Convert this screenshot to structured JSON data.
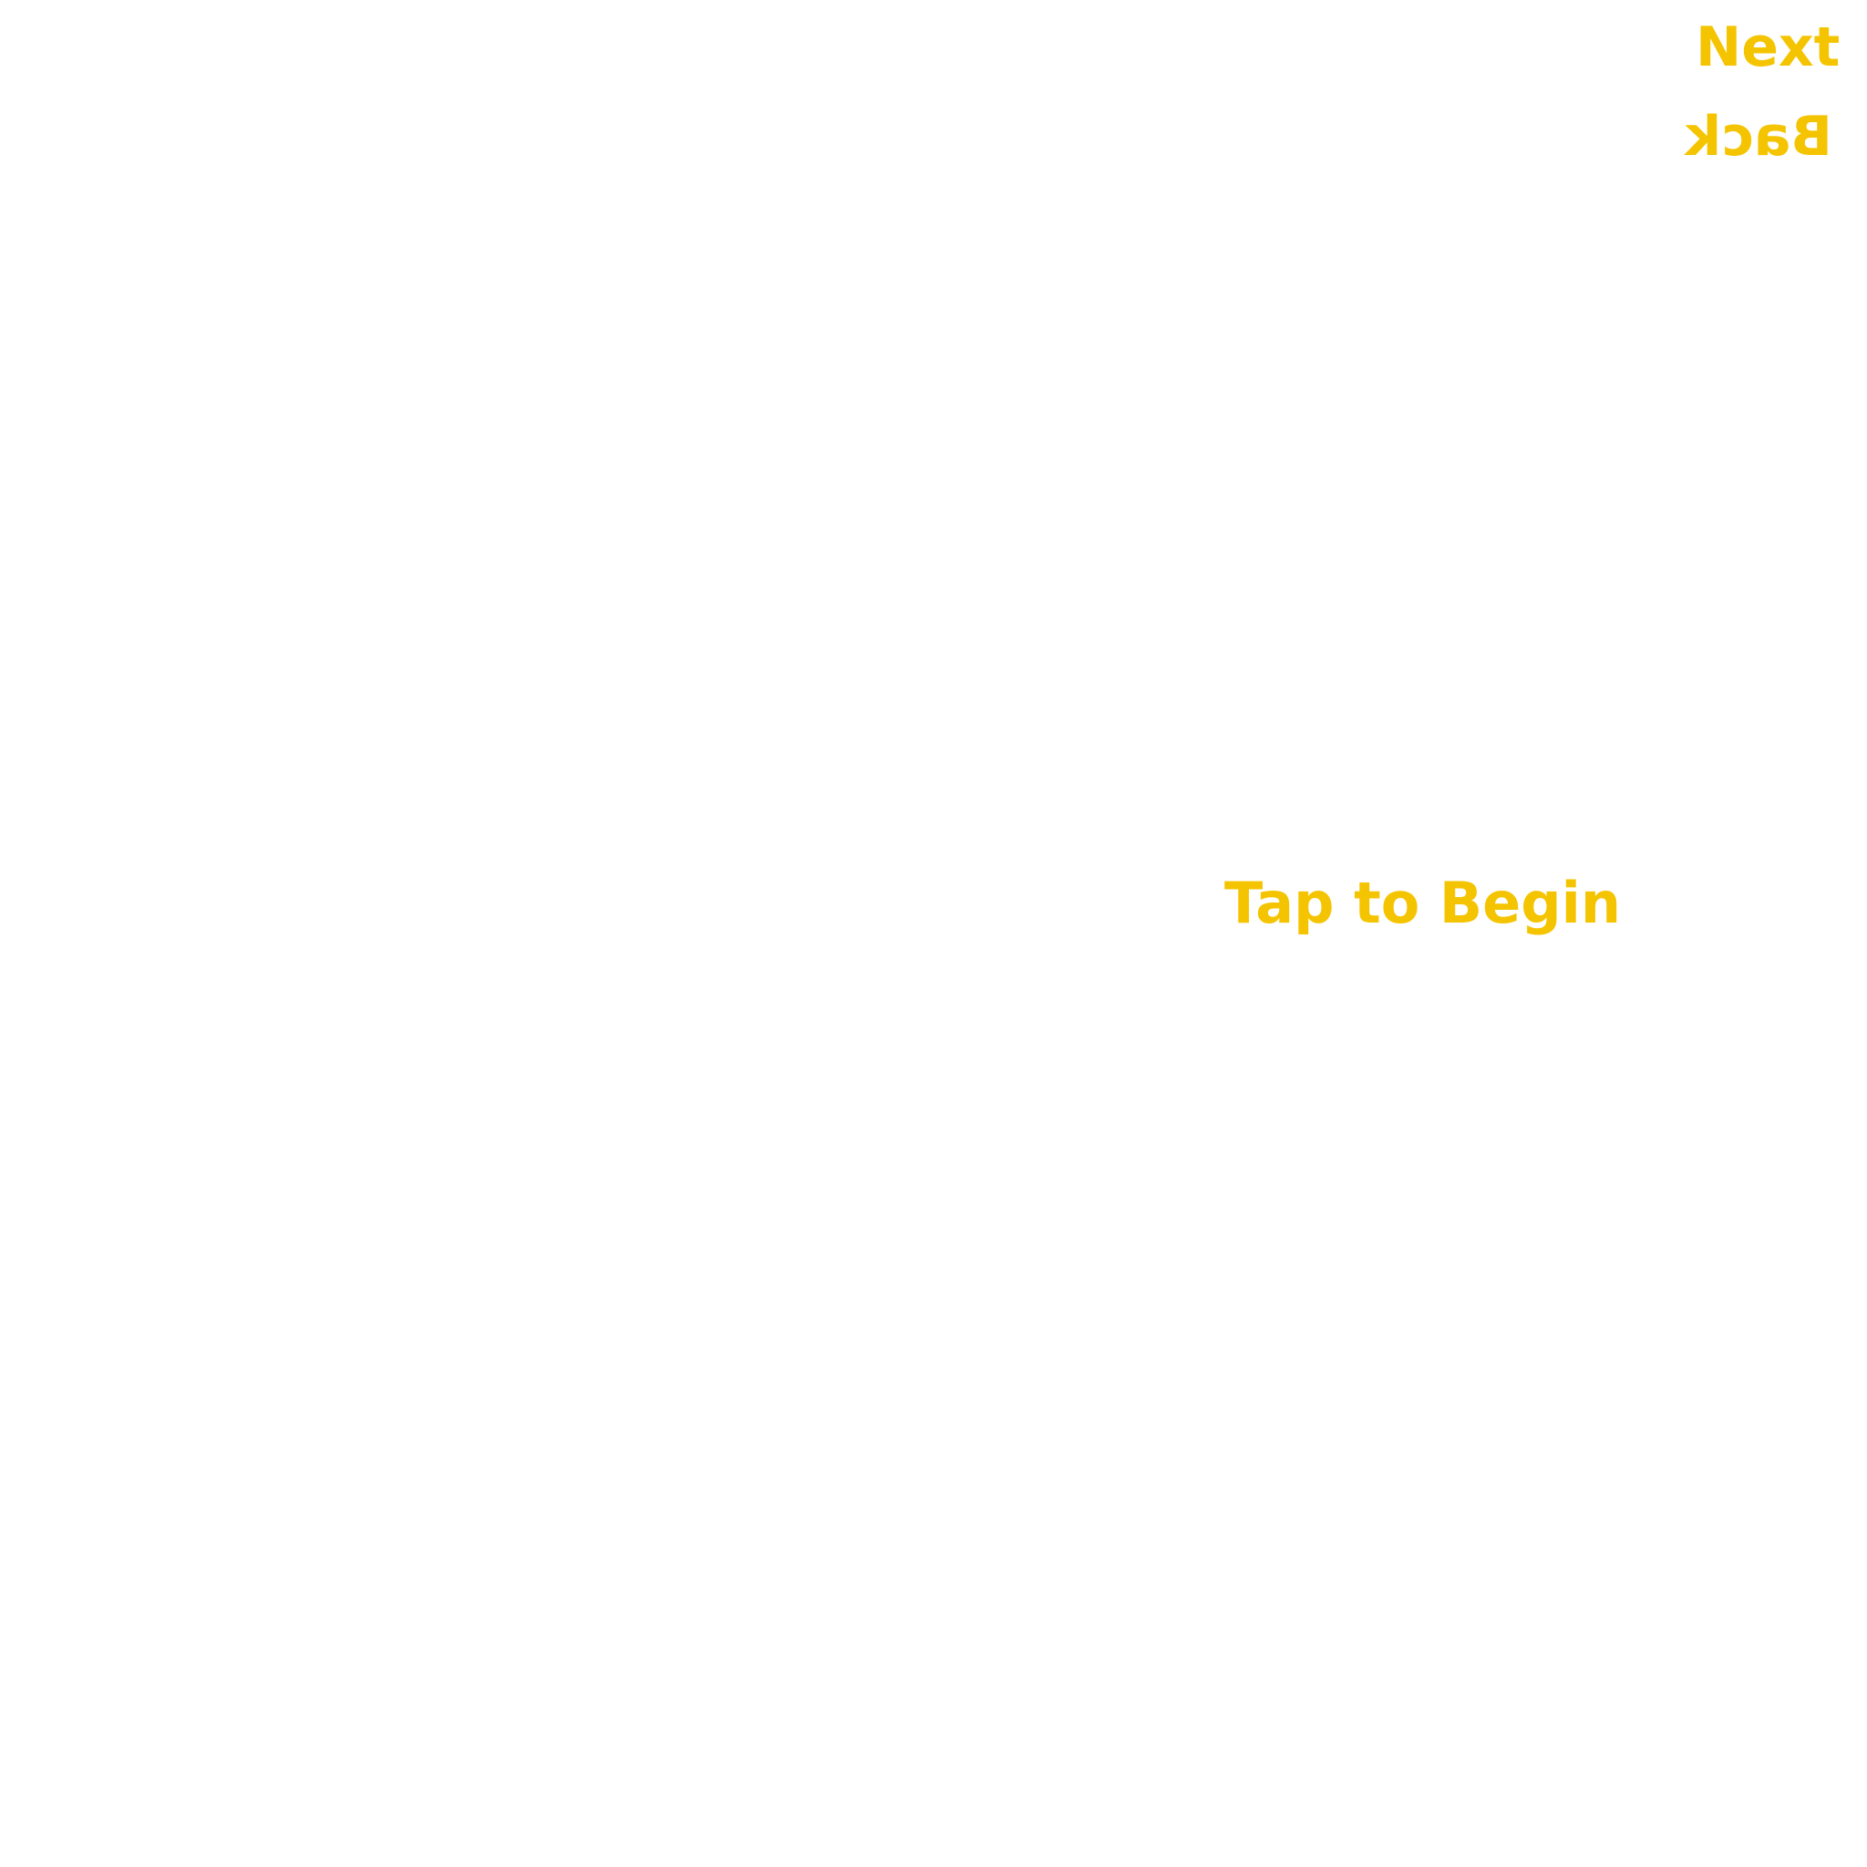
{
  "colors": {
    "background": "#ffffff",
    "accent": "#f5c400"
  },
  "nav": {
    "next_label": "Next",
    "back_label": "Back"
  },
  "main": {
    "begin_label": "Tap to Begin"
  }
}
